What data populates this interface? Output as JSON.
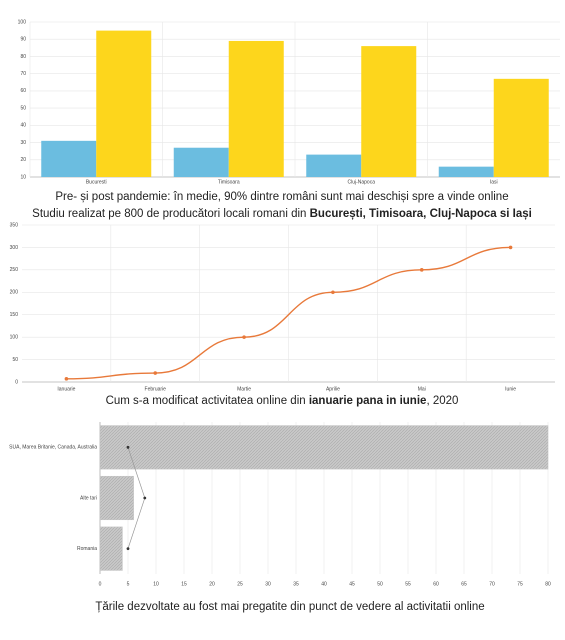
{
  "chart_data": [
    {
      "type": "bar",
      "caption": "Pre- și post pandemie: în medie, 90% dintre români sunt mai deschiși spre a vinde online",
      "subtitle": "Studiu realizat pe 800 de producători locali romani din ",
      "subtitle_bold": "București, Timisoara, Cluj-Napoca si Iași",
      "categories": [
        "Bucuresti",
        "Timisoara",
        "Cluj-Napoca",
        "Iasi"
      ],
      "series": [
        {
          "color": "#6bbde0",
          "values": [
            31,
            27,
            23,
            16
          ]
        },
        {
          "color": "#fdd61c",
          "values": [
            95,
            89,
            86,
            67
          ]
        }
      ],
      "ylim": [
        10,
        100
      ],
      "yticks": [
        10,
        20,
        30,
        40,
        50,
        60,
        70,
        80,
        90,
        100
      ],
      "grid": true
    },
    {
      "type": "line",
      "caption": "Cum s-a modificat activitatea online din ",
      "caption_bold": "ianuarie pana in iunie",
      "caption_end": ", 2020",
      "categories": [
        "Ianuarie",
        "Februarie",
        "Martie",
        "Aprilie",
        "Mai",
        "Iunie"
      ],
      "values": [
        7,
        20,
        100,
        200,
        250,
        300
      ],
      "color": "#e8793a",
      "ylim": [
        0,
        350
      ],
      "yticks": [
        0,
        50,
        100,
        150,
        200,
        250,
        300,
        350
      ],
      "grid": true
    },
    {
      "type": "hbar",
      "caption": "Țările dezvoltate au fost mai pregatite din punct de vedere al activitatii online",
      "categories": [
        "SUA, Marea Britanie, Canada, Australia",
        "Alte tari",
        "Romania"
      ],
      "values": [
        80,
        6,
        4
      ],
      "color": "#c4c4c4",
      "line_values": [
        5,
        8,
        5
      ],
      "line_color": "#333333",
      "xlim": [
        0,
        80
      ],
      "xticks": [
        0,
        5,
        10,
        15,
        20,
        25,
        30,
        35,
        40,
        45,
        50,
        55,
        60,
        65,
        70,
        75,
        80
      ],
      "grid": true
    }
  ]
}
